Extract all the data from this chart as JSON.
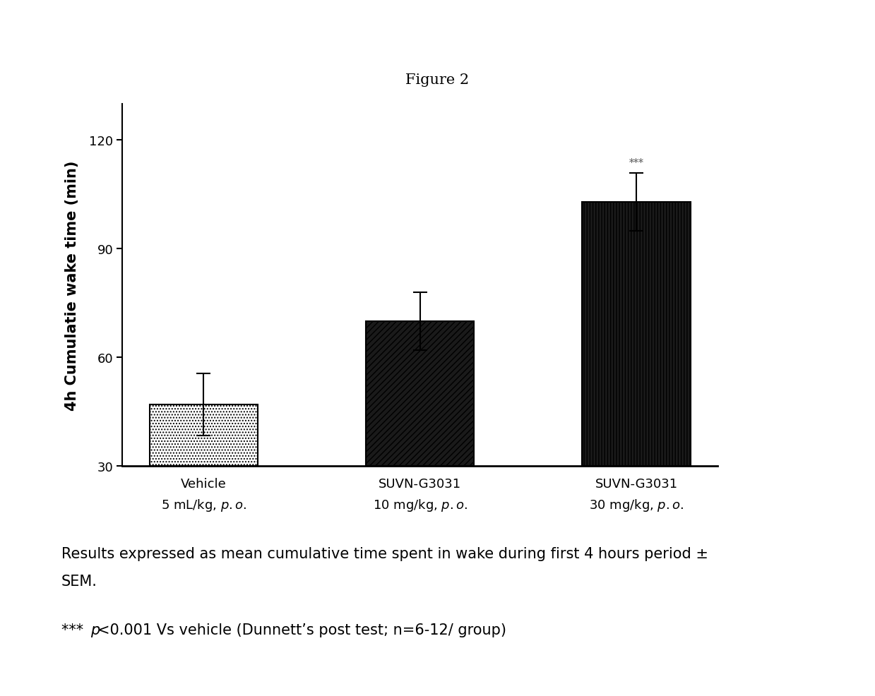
{
  "title": "Figure 2",
  "ylabel": "4h Cumulatie wake time (min)",
  "values": [
    47.0,
    70.0,
    103.0
  ],
  "errors": [
    8.5,
    8.0,
    8.0
  ],
  "ylim": [
    30,
    130
  ],
  "yticks": [
    30,
    60,
    90,
    120
  ],
  "significance": [
    "",
    "",
    "***"
  ],
  "caption_line1": "Results expressed as mean cumulative time spent in wake during first 4 hours period ±",
  "caption_line2": "SEM.",
  "footnote_prefix": "*** ",
  "footnote_italic": "p",
  "footnote_rest": "<0.001 Vs vehicle (Dunnett’s post test; n=6-12/ group)",
  "background_color": "white",
  "title_fontsize": 15,
  "ylabel_fontsize": 15,
  "tick_fontsize": 13,
  "caption_fontsize": 15,
  "sig_fontsize": 10,
  "xtick_fontsize": 13
}
